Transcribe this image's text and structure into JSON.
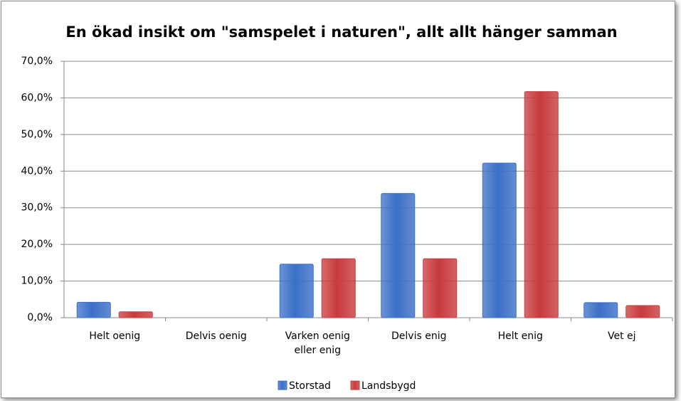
{
  "chart_data": {
    "type": "bar",
    "title": "En ökad insikt om \"samspelet i naturen\", allt allt hänger samman",
    "categories": [
      "Helt oenig",
      "Delvis oenig",
      "Varken oenig eller enig",
      "Delvis enig",
      "Helt enig",
      "Vet ej"
    ],
    "series": [
      {
        "name": "Storstad",
        "color": "#3b6fc6",
        "values": [
          4.2,
          0,
          14.6,
          33.9,
          42.2,
          4.1
        ]
      },
      {
        "name": "Landsbygd",
        "color": "#c83a3c",
        "values": [
          1.6,
          0,
          16.1,
          16.1,
          61.7,
          3.3
        ]
      }
    ],
    "ylim": [
      0,
      70
    ],
    "yticks": [
      {
        "value": 0,
        "label": "0,0%"
      },
      {
        "value": 10,
        "label": "10,0%"
      },
      {
        "value": 20,
        "label": "20,0%"
      },
      {
        "value": 30,
        "label": "30,0%"
      },
      {
        "value": 40,
        "label": "40,0%"
      },
      {
        "value": 50,
        "label": "50,0%"
      },
      {
        "value": 60,
        "label": "60,0%"
      },
      {
        "value": 70,
        "label": "70,0%"
      }
    ],
    "grid": true,
    "legend": "bottom"
  }
}
